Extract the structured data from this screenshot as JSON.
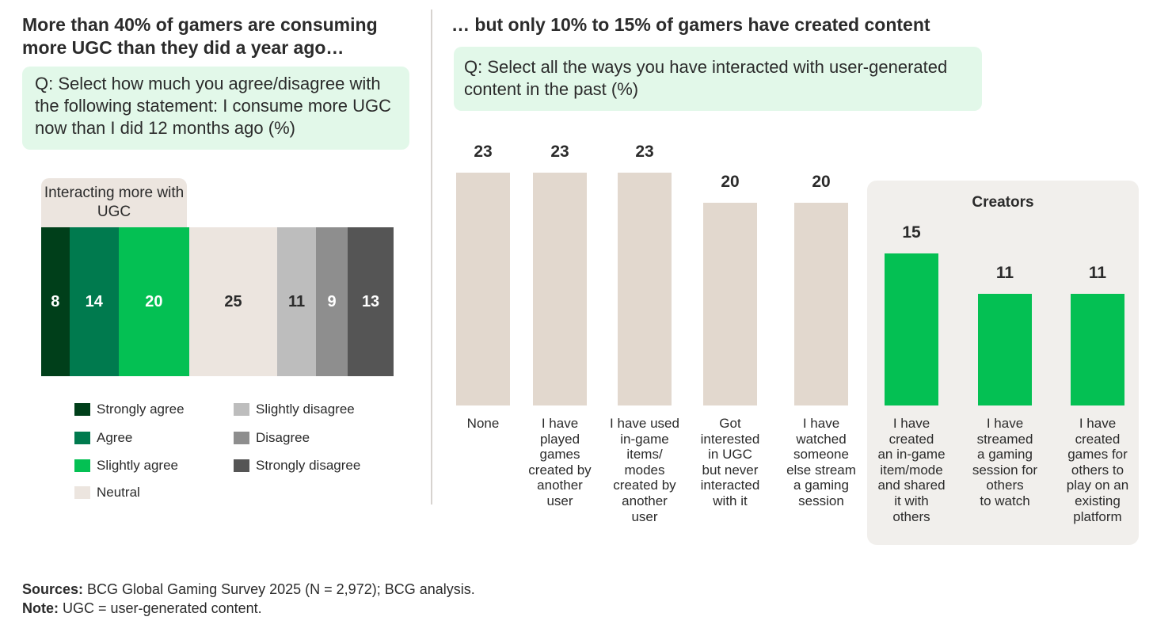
{
  "left": {
    "title": "More than 40% of gamers are consuming more UGC than they did a year ago…",
    "question": "Q: Select how much you agree/disagree with the following statement: I consume more UGC now than I did 12 months ago (%)",
    "callout": "Interacting more with UGC"
  },
  "right": {
    "title": "… but only 10% to 15% of gamers have created content",
    "question": "Q: Select all the ways you have interacted with user-generated content in the past (%)",
    "panel_title": "Creators"
  },
  "colors": {
    "strongly_agree": "#003f1a",
    "agree": "#007a4e",
    "slightly_agree": "#04c053",
    "neutral": "#ece5df",
    "slightly_disagree": "#bdbdbd",
    "disagree": "#8e8e8e",
    "strongly_disagree": "#555555",
    "bar_neutral": "#e2d8ce",
    "bar_creator": "#04c053"
  },
  "chart_data": [
    {
      "type": "bar",
      "orientation": "stacked-horizontal",
      "categories": [
        "Strongly agree",
        "Agree",
        "Slightly agree",
        "Neutral",
        "Slightly disagree",
        "Disagree",
        "Strongly disagree"
      ],
      "values": [
        8,
        14,
        20,
        25,
        11,
        9,
        13
      ],
      "legend_layout": "two columns below bar"
    },
    {
      "type": "bar",
      "categories": [
        "None",
        "I have played games created by another user",
        "I have used in-game items/ modes created by another user",
        "Got interested in UGC but never interacted with it",
        "I have watched someone else stream a gaming session",
        "I have created an in-game item/mode and shared it with others",
        "I have streamed a gaming session for others to watch",
        "I have created games for others to play on an existing platform"
      ],
      "labels_display": [
        "None",
        "I have\nplayed\ngames\ncreated by\nanother\nuser",
        "I have used\nin-game\nitems/\nmodes\ncreated by\nanother\nuser",
        "Got\ninterested\nin UGC\nbut never\ninteracted\nwith it",
        "I have\nwatched\nsomeone\nelse stream\na gaming\nsession",
        "I have\ncreated\nan in-game\nitem/mode\nand shared\nit with\nothers",
        "I have\nstreamed\na gaming\nsession for\nothers\nto watch",
        "I have\ncreated\ngames for\nothers to\nplay on an\nexisting\nplatform"
      ],
      "values": [
        23,
        23,
        23,
        20,
        20,
        15,
        11,
        11
      ],
      "group": [
        "other",
        "other",
        "other",
        "other",
        "other",
        "creator",
        "creator",
        "creator"
      ]
    }
  ],
  "footer": {
    "sources_label": "Sources:",
    "sources_text": " BCG Global Gaming Survey 2025 (N = 2,972); BCG analysis.",
    "note_label": "Note:",
    "note_text": " UGC = user-generated content."
  }
}
